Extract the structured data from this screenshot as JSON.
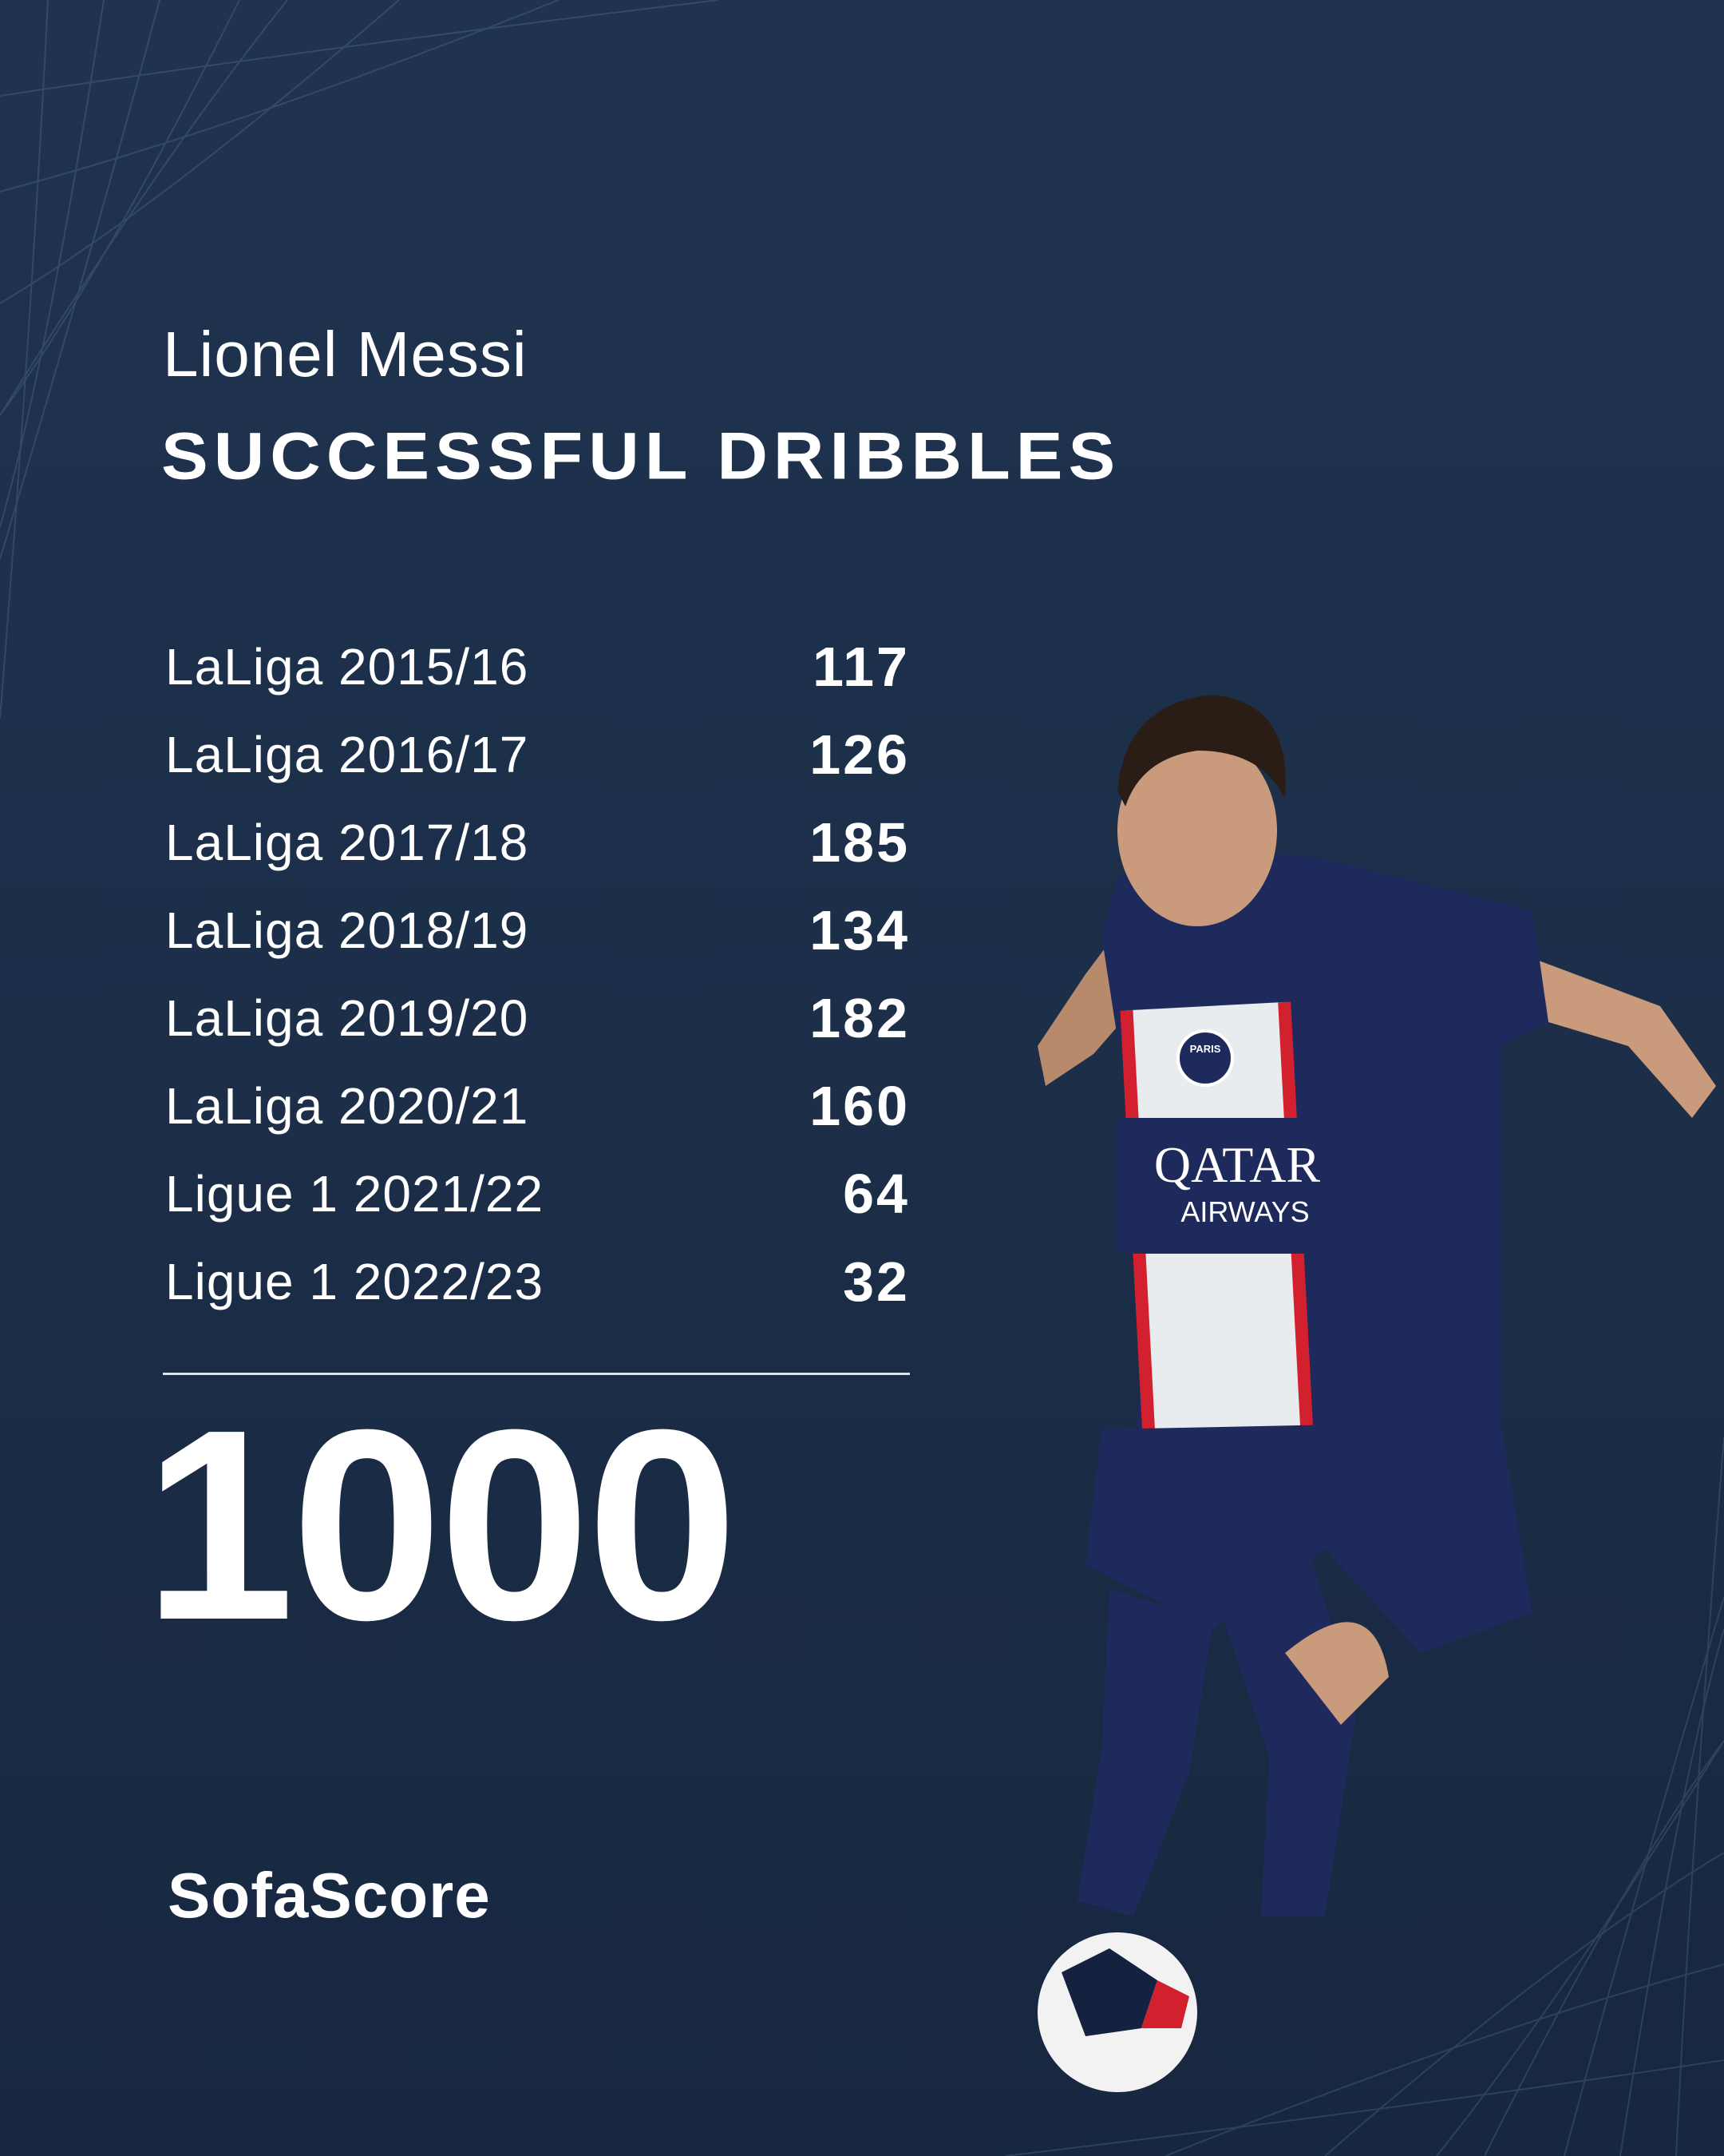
{
  "header": {
    "player_name": "Lionel Messi",
    "stat_title": "SUCCESSFUL DRIBBLES"
  },
  "rows": [
    {
      "label": "LaLiga 2015/16",
      "value": "117"
    },
    {
      "label": "LaLiga 2016/17",
      "value": "126"
    },
    {
      "label": "LaLiga 2017/18",
      "value": "185"
    },
    {
      "label": "LaLiga 2018/19",
      "value": "134"
    },
    {
      "label": "LaLiga 2019/20",
      "value": "182"
    },
    {
      "label": "LaLiga 2020/21",
      "value": "160"
    },
    {
      "label": "Ligue 1 2021/22",
      "value": "64"
    },
    {
      "label": "Ligue 1 2022/23",
      "value": "32"
    }
  ],
  "total": "1000",
  "brand": "SofaScore",
  "photo": {
    "jersey_text": "QATAR AIRWAYS",
    "badge": "PARIS"
  },
  "colors": {
    "background": "#1d3049",
    "text": "#ffffff",
    "jersey": "#1e2a5c",
    "stripe_red": "#d2202f"
  }
}
